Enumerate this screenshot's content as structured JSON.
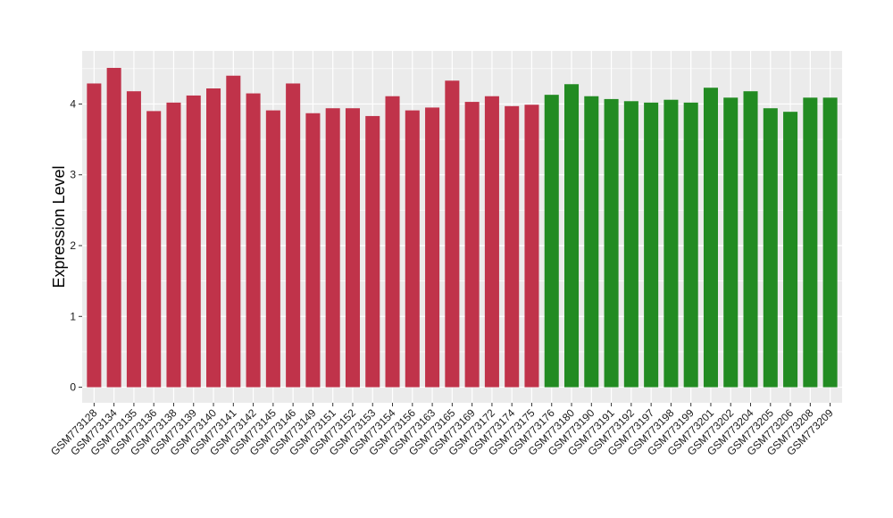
{
  "chart_data": {
    "type": "bar",
    "title": "",
    "xlabel": "",
    "ylabel": "Expression Level",
    "ylim": [
      -0.22,
      4.75
    ],
    "yticks": [
      0,
      1,
      2,
      3,
      4
    ],
    "grid": true,
    "legend": "none",
    "background": "#ebebeb",
    "gridline_color": "#ffffff",
    "categories": [
      "GSM773128",
      "GSM773134",
      "GSM773135",
      "GSM773136",
      "GSM773138",
      "GSM773139",
      "GSM773140",
      "GSM773141",
      "GSM773142",
      "GSM773145",
      "GSM773146",
      "GSM773149",
      "GSM773151",
      "GSM773152",
      "GSM773153",
      "GSM773154",
      "GSM773156",
      "GSM773163",
      "GSM773165",
      "GSM773169",
      "GSM773172",
      "GSM773174",
      "GSM773175",
      "GSM773176",
      "GSM773180",
      "GSM773190",
      "GSM773191",
      "GSM773192",
      "GSM773197",
      "GSM773198",
      "GSM773199",
      "GSM773201",
      "GSM773202",
      "GSM773204",
      "GSM773205",
      "GSM773206",
      "GSM773208",
      "GSM773209"
    ],
    "values": [
      4.29,
      4.51,
      4.18,
      3.9,
      4.02,
      4.12,
      4.22,
      4.4,
      4.15,
      3.91,
      4.29,
      3.87,
      3.94,
      3.94,
      3.83,
      4.11,
      3.91,
      3.95,
      4.33,
      4.03,
      4.11,
      3.97,
      3.99,
      4.13,
      4.28,
      4.11,
      4.07,
      4.04,
      4.02,
      4.06,
      4.02,
      4.23,
      4.09,
      4.18,
      3.94,
      3.89,
      4.09,
      4.09
    ],
    "bar_colors": [
      "#c0334a",
      "#c0334a",
      "#c0334a",
      "#c0334a",
      "#c0334a",
      "#c0334a",
      "#c0334a",
      "#c0334a",
      "#c0334a",
      "#c0334a",
      "#c0334a",
      "#c0334a",
      "#c0334a",
      "#c0334a",
      "#c0334a",
      "#c0334a",
      "#c0334a",
      "#c0334a",
      "#c0334a",
      "#c0334a",
      "#c0334a",
      "#c0334a",
      "#c0334a",
      "#228b22",
      "#228b22",
      "#228b22",
      "#228b22",
      "#228b22",
      "#228b22",
      "#228b22",
      "#228b22",
      "#228b22",
      "#228b22",
      "#228b22",
      "#228b22",
      "#228b22",
      "#228b22",
      "#228b22"
    ]
  }
}
